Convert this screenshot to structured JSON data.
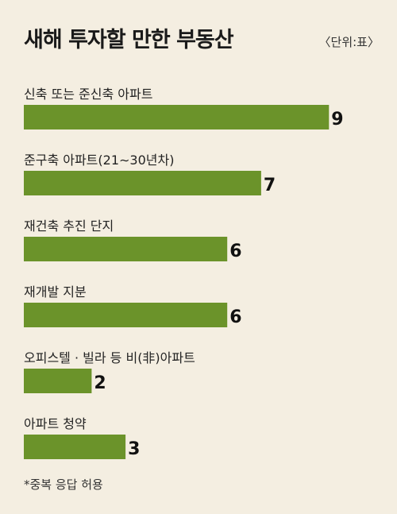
{
  "title": "새해 투자할 만한 부동산",
  "unit": "〈단위:표〉",
  "note": "*중복 응답 허용",
  "chart_data": {
    "type": "bar",
    "orientation": "horizontal",
    "title": "새해 투자할 만한 부동산",
    "categories": [
      "신축 또는 준신축 아파트",
      "준구축 아파트(21∼30년차)",
      "재건축 추진 단지",
      "재개발 지분",
      "오피스텔 · 빌라 등 비(非)아파트",
      "아파트 청약"
    ],
    "values": [
      9,
      7,
      6,
      6,
      2,
      3
    ],
    "unit": "표",
    "bar_color": "#6b932a",
    "grid": false,
    "legend": "none"
  }
}
